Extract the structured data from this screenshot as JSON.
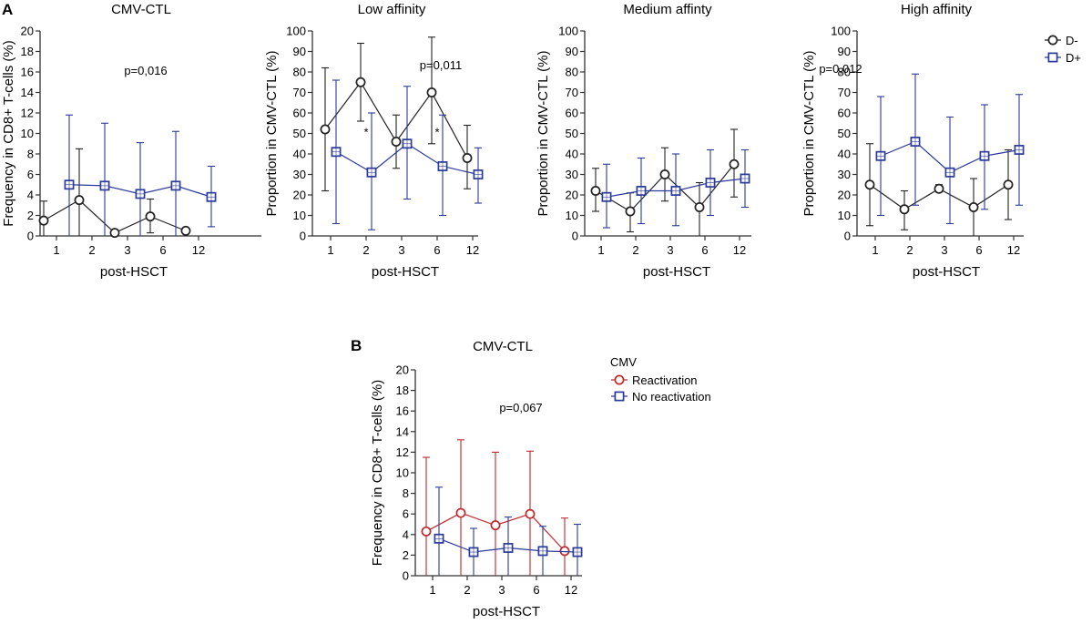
{
  "figure": {
    "panel_a_label": "A",
    "panel_b_label": "B"
  },
  "legend_a": {
    "entries": [
      {
        "name": "D-",
        "color": "#222222",
        "marker": "circle"
      },
      {
        "name": "D+",
        "color": "#2b3a9b",
        "marker": "square"
      }
    ]
  },
  "legend_b": {
    "title": "CMV",
    "entries": [
      {
        "name": "Reactivation",
        "color": "#c0282d",
        "marker": "circle"
      },
      {
        "name": "No reactivation",
        "color": "#2b3a9b",
        "marker": "square"
      }
    ]
  },
  "chart_data": [
    {
      "type": "line",
      "title": "CMV-CTL",
      "xlabel": "post-HSCT",
      "ylabel": "Frequency in CD8+ T-cells (%)",
      "categories": [
        "1",
        "2",
        "3",
        "6",
        "12"
      ],
      "ylim": [
        0,
        20
      ],
      "yticks": [
        0,
        2,
        4,
        6,
        8,
        10,
        12,
        14,
        16,
        18,
        20
      ],
      "annotation": "p=0,016",
      "stars": [],
      "series": [
        {
          "name": "D-",
          "color": "#222222",
          "marker": "circle",
          "values": [
            1.5,
            3.5,
            0.3,
            1.9,
            0.5
          ],
          "err_low": [
            0,
            0,
            0,
            0.3,
            0
          ],
          "err_high": [
            3.4,
            8.5,
            0.6,
            3.6,
            0.8
          ]
        },
        {
          "name": "D+",
          "color": "#2b3a9b",
          "marker": "square",
          "values": [
            5.0,
            4.9,
            4.1,
            4.9,
            3.8
          ],
          "err_low": [
            0,
            0,
            0,
            0,
            0.9
          ],
          "err_high": [
            11.8,
            11.0,
            9.1,
            10.2,
            6.8
          ]
        }
      ]
    },
    {
      "type": "line",
      "title": "Low affinity",
      "xlabel": "post-HSCT",
      "ylabel": "Proportion in CMV-CTL (%)",
      "categories": [
        "1",
        "2",
        "3",
        "6",
        "12"
      ],
      "ylim": [
        0,
        100
      ],
      "yticks": [
        0,
        10,
        20,
        30,
        40,
        50,
        60,
        70,
        80,
        90,
        100
      ],
      "annotation": "p=0,011",
      "stars": [
        {
          "category": "2",
          "y": 51,
          "text": "*"
        },
        {
          "category": "6",
          "y": 51,
          "text": "*"
        }
      ],
      "series": [
        {
          "name": "D-",
          "color": "#222222",
          "marker": "circle",
          "values": [
            52,
            75,
            46,
            70,
            38
          ],
          "err_low": [
            22,
            56,
            33,
            45,
            23
          ],
          "err_high": [
            82,
            94,
            59,
            97,
            54
          ]
        },
        {
          "name": "D+",
          "color": "#2b3a9b",
          "marker": "square",
          "values": [
            41,
            31,
            45,
            34,
            30
          ],
          "err_low": [
            6,
            3,
            18,
            10,
            16
          ],
          "err_high": [
            76,
            60,
            73,
            59,
            43
          ]
        }
      ]
    },
    {
      "type": "line",
      "title": "Medium affinty",
      "xlabel": "post-HSCT",
      "ylabel": "Proportion in CMV-CTL (%)",
      "categories": [
        "1",
        "2",
        "3",
        "6",
        "12"
      ],
      "ylim": [
        0,
        100
      ],
      "yticks": [
        0,
        10,
        20,
        30,
        40,
        50,
        60,
        70,
        80,
        90,
        100
      ],
      "annotation": "",
      "stars": [],
      "series": [
        {
          "name": "D-",
          "color": "#222222",
          "marker": "circle",
          "values": [
            22,
            12,
            30,
            14,
            35
          ],
          "err_low": [
            12,
            2,
            17,
            0,
            19
          ],
          "err_high": [
            33,
            21,
            43,
            26,
            52
          ]
        },
        {
          "name": "D+",
          "color": "#2b3a9b",
          "marker": "square",
          "values": [
            19,
            22,
            22,
            26,
            28
          ],
          "err_low": [
            4,
            6,
            5,
            10,
            14
          ],
          "err_high": [
            35,
            38,
            40,
            42,
            42
          ]
        }
      ]
    },
    {
      "type": "line",
      "title": "High affinity",
      "xlabel": "post-HSCT",
      "ylabel": "Proportion in CMV-CTL (%)",
      "categories": [
        "1",
        "2",
        "3",
        "6",
        "12"
      ],
      "ylim": [
        0,
        100
      ],
      "yticks": [
        0,
        10,
        20,
        30,
        40,
        50,
        60,
        70,
        80,
        90,
        100
      ],
      "annotation": "p=0,012",
      "stars": [],
      "series": [
        {
          "name": "D-",
          "color": "#222222",
          "marker": "circle",
          "values": [
            25,
            13,
            23,
            14,
            25
          ],
          "err_low": [
            5,
            3,
            22,
            0,
            8
          ],
          "err_high": [
            45,
            22,
            25,
            28,
            42
          ]
        },
        {
          "name": "D+",
          "color": "#2b3a9b",
          "marker": "square",
          "values": [
            39,
            46,
            31,
            39,
            42
          ],
          "err_low": [
            10,
            15,
            6,
            13,
            15
          ],
          "err_high": [
            68,
            79,
            58,
            64,
            69
          ]
        }
      ]
    },
    {
      "type": "line",
      "title": "CMV-CTL",
      "xlabel": "post-HSCT",
      "ylabel": "Frequency in CD8+ T-cells (%)",
      "categories": [
        "1",
        "2",
        "3",
        "6",
        "12"
      ],
      "ylim": [
        0,
        20
      ],
      "yticks": [
        0,
        2,
        4,
        6,
        8,
        10,
        12,
        14,
        16,
        18,
        20
      ],
      "annotation": "p=0,067",
      "stars": [],
      "series": [
        {
          "name": "Reactivation",
          "color": "#c0282d",
          "marker": "circle",
          "values": [
            4.3,
            6.1,
            4.9,
            6.0,
            2.4
          ],
          "err_low": [
            0,
            0,
            0,
            0,
            0
          ],
          "err_high": [
            11.5,
            13.2,
            12.0,
            12.1,
            5.6
          ]
        },
        {
          "name": "No reactivation",
          "color": "#2b3a9b",
          "marker": "square",
          "values": [
            3.6,
            2.3,
            2.7,
            2.4,
            2.3
          ],
          "err_low": [
            0,
            0,
            0,
            0,
            0
          ],
          "err_high": [
            8.6,
            4.6,
            5.7,
            4.8,
            5.0
          ]
        }
      ]
    }
  ]
}
